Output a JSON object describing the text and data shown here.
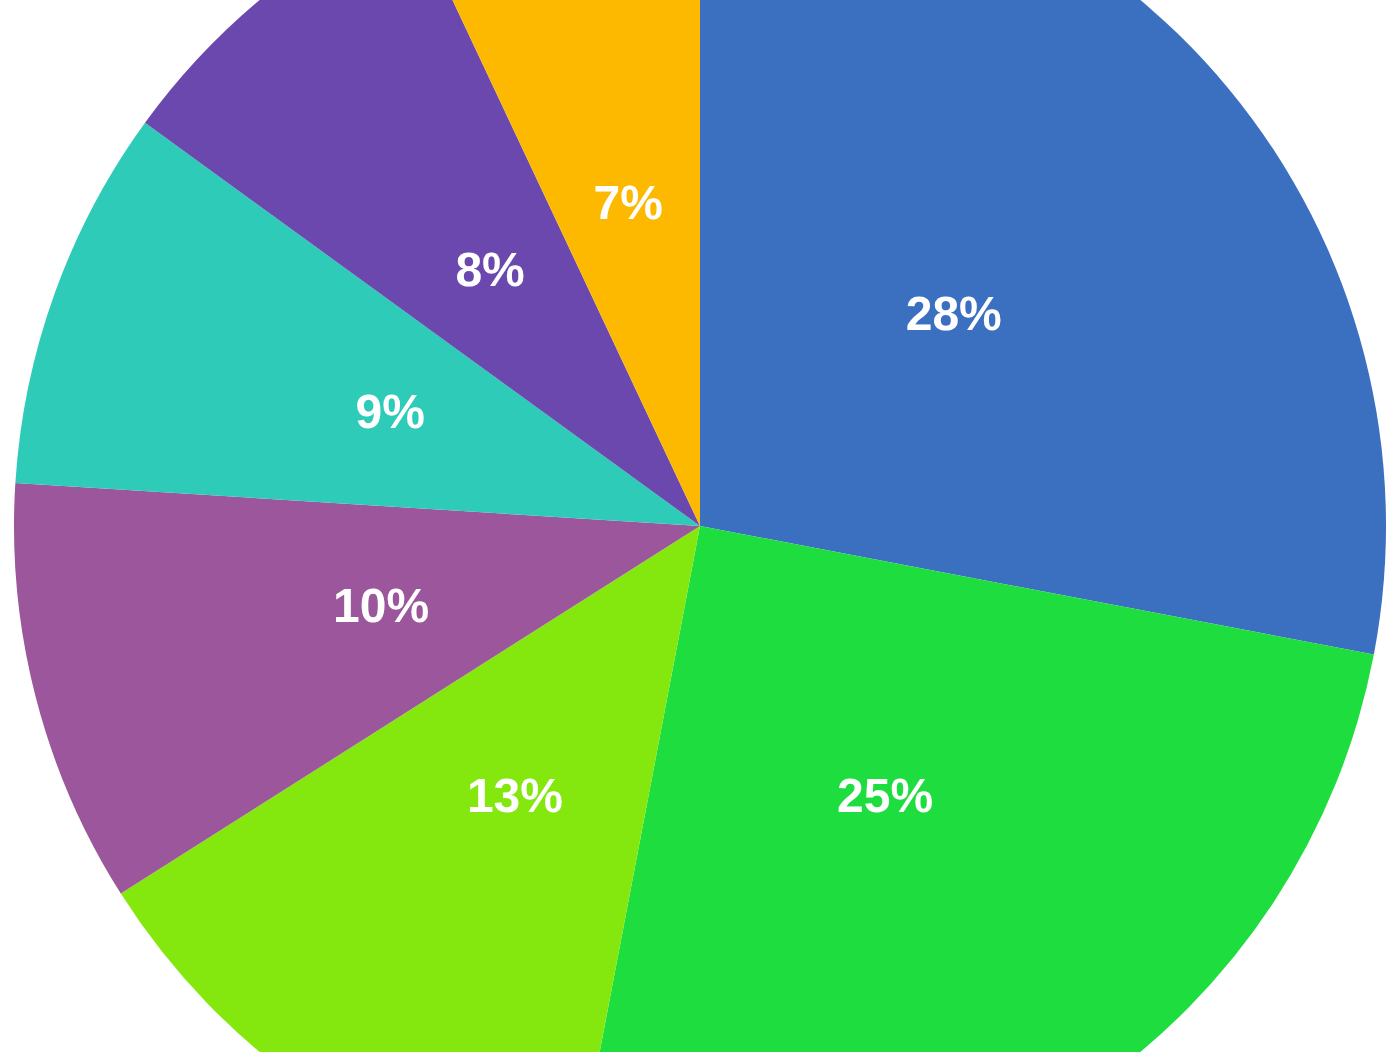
{
  "chart_data": {
    "type": "pie",
    "categories": [
      null,
      null,
      null,
      null,
      null,
      null,
      null
    ],
    "values": [
      28,
      25,
      13,
      10,
      9,
      8,
      7
    ],
    "colors": [
      "#3b6fc0",
      "#1edd3f",
      "#84e80f",
      "#9b569c",
      "#2ecbb8",
      "#6b48ad",
      "#fdb900"
    ],
    "value_labels": [
      "28%",
      "25%",
      "13%",
      "10%",
      "9%",
      "8%",
      "7%"
    ]
  }
}
